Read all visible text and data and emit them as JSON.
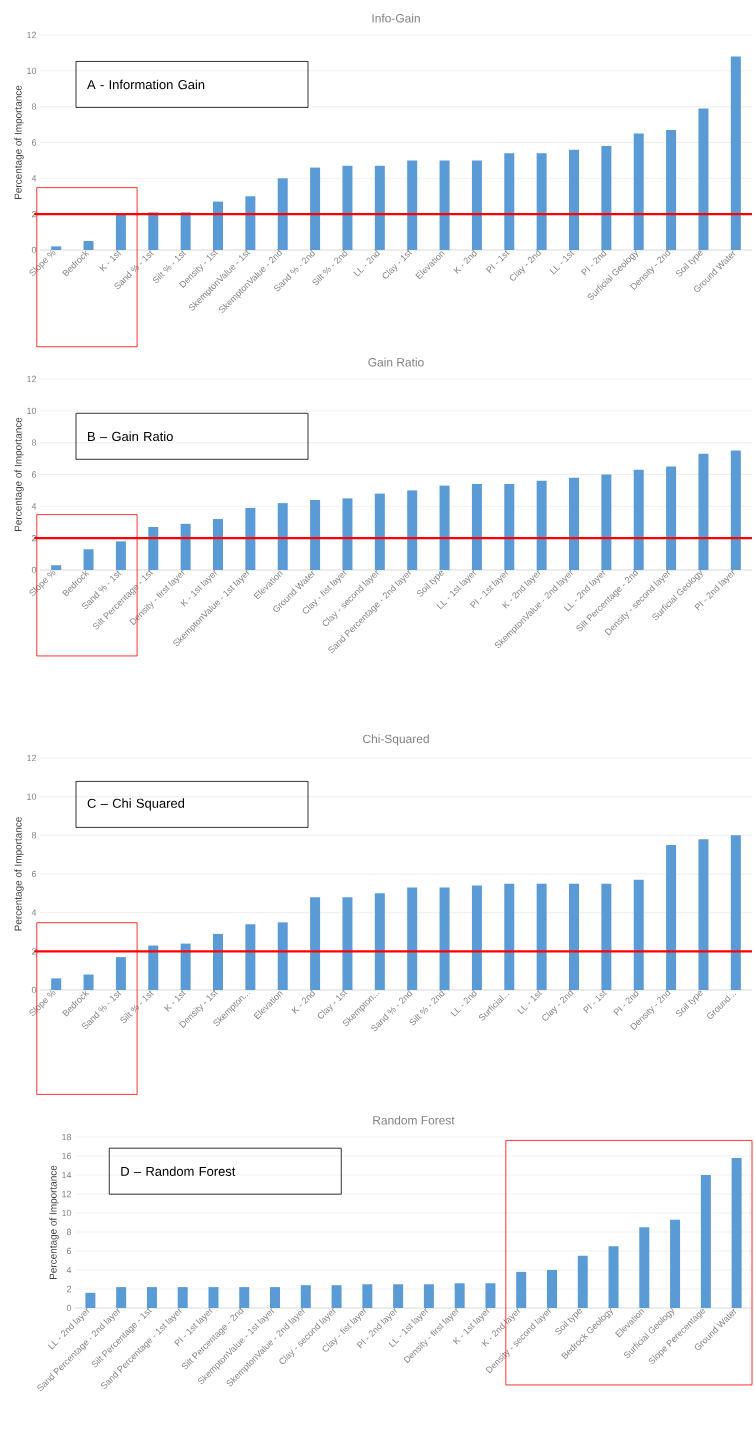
{
  "chart_data": [
    {
      "type": "bar",
      "title": "Info-Gain",
      "ylabel": "Percentage of Importance",
      "color": "#5b9bd5",
      "ylim": [
        0,
        12
      ],
      "yticks": [
        0,
        2,
        4,
        6,
        8,
        10,
        12
      ],
      "grid": "y",
      "categories": [
        "Slope %",
        "Bedrock",
        "K - 1st",
        "Sand % - 1st",
        "Silt % - 1st",
        "Density - 1st",
        "SkemptonValue - 1st",
        "SkemptonValue - 2nd",
        "Sand % - 2nd",
        "Silt % - 2nd",
        "LL - 2nd",
        "Clay - 1st",
        "Elevation",
        "K - 2nd",
        "PI - 1st",
        "Clay - 2nd",
        "LL - 1st",
        "PI - 2nd",
        "Surficial Geology",
        "Density - 2nd",
        "Soil type",
        "Ground Water"
      ],
      "values": [
        0.2,
        0.5,
        2.0,
        2.1,
        2.1,
        2.7,
        3.0,
        4.0,
        4.6,
        4.7,
        4.7,
        5.0,
        5.0,
        5.0,
        5.4,
        5.4,
        5.6,
        5.8,
        6.5,
        6.7,
        7.9,
        10.8
      ],
      "ref_lines": [
        {
          "axis": "y",
          "value": 2,
          "color": "#ff0000"
        }
      ],
      "annotations": [
        "A - Information Gain"
      ]
    },
    {
      "type": "bar",
      "title": "Gain Ratio",
      "ylabel": "Percentage of Importance",
      "color": "#5b9bd5",
      "ylim": [
        0,
        12
      ],
      "yticks": [
        0,
        2,
        4,
        6,
        8,
        10,
        12
      ],
      "grid": "y",
      "categories": [
        "Slope %",
        "Bedrock",
        "Sand % - 1st",
        "Silt Percentage - 1st",
        "Density - first layer",
        "K - 1st layer",
        "SkemptonValue - 1st layer",
        "Elevation",
        "Ground Water",
        "Clay - fist layer",
        "Clay - second  layer",
        "Sand Percentage - 2nd layer",
        "Soil type",
        "LL - 1st layer",
        "PI - 1st layer",
        "K - 2nd layer",
        "SkemptonValue - 2nd layer",
        "LL - 2nd layer",
        "Silt Percentage - 2nd",
        "Density - second layer",
        "Surficial Geology",
        "PI - 2nd layer"
      ],
      "values": [
        0.3,
        1.3,
        1.8,
        2.7,
        2.9,
        3.2,
        3.9,
        4.2,
        4.4,
        4.5,
        4.8,
        5.0,
        5.3,
        5.4,
        5.4,
        5.6,
        5.8,
        6.0,
        6.3,
        6.5,
        7.3,
        7.5
      ],
      "ref_lines": [
        {
          "axis": "y",
          "value": 2,
          "color": "#ff0000"
        }
      ],
      "annotations": [
        "B – Gain Ratio"
      ]
    },
    {
      "type": "bar",
      "title": "Chi-Squared",
      "ylabel": "Percentage of Importance",
      "color": "#5b9bd5",
      "ylim": [
        0,
        12
      ],
      "yticks": [
        0,
        2,
        4,
        6,
        8,
        10,
        12
      ],
      "grid": "y",
      "categories": [
        "Slope %",
        "Bedrock",
        "Sand % - 1st",
        "Silt % - 1st",
        "K - 1st",
        "Density - 1st",
        "Skempton...",
        "Elevation",
        "K - 2nd",
        "Clay - 1st",
        "Skempton...",
        "Sand % - 2nd",
        "Silt % - 2nd",
        "LL - 2nd",
        "Surficial...",
        "LL - 1st",
        "Clay - 2nd",
        "PI - 1st",
        "PI - 2nd",
        "Density - 2nd",
        "Soil type",
        "Ground..."
      ],
      "values": [
        0.6,
        0.8,
        1.7,
        2.3,
        2.4,
        2.9,
        3.4,
        3.5,
        4.8,
        4.8,
        5.0,
        5.3,
        5.3,
        5.4,
        5.5,
        5.5,
        5.5,
        5.5,
        5.7,
        7.5,
        7.8,
        8.0
      ],
      "ref_lines": [
        {
          "axis": "y",
          "value": 2,
          "color": "#ff0000"
        }
      ],
      "annotations": [
        "C – Chi Squared"
      ]
    },
    {
      "type": "bar",
      "title": "Random Forest",
      "ylabel": "Percentage of Importance",
      "color": "#5b9bd5",
      "ylim": [
        0,
        18
      ],
      "yticks": [
        0,
        2,
        4,
        6,
        8,
        10,
        12,
        14,
        16,
        18
      ],
      "grid": "y",
      "categories": [
        "LL - 2nd layer",
        "Sand Percentage - 2nd layer",
        "Silt Percentage - 1st",
        "Sand Percentage - 1st layer",
        "PI - 1st layer",
        "Silt Percentage - 2nd",
        "SkemptonValue - 1st layer",
        "SkemptonValue - 2nd layer",
        "Clay - second  layer",
        "Clay - fist layer",
        "PI - 2nd layer",
        "LL - 1st layer",
        "Density - first layer",
        "K - 1st layer",
        "K - 2nd layer",
        "Density - second layer",
        "Soil type",
        "Bedrock Geology",
        "Elevation",
        "Surficial Geology",
        "Slope Perecentage",
        "Ground Water"
      ],
      "values": [
        1.6,
        2.2,
        2.2,
        2.2,
        2.2,
        2.2,
        2.2,
        2.4,
        2.4,
        2.5,
        2.5,
        2.5,
        2.6,
        2.6,
        3.8,
        4.0,
        5.5,
        6.5,
        8.5,
        9.3,
        14.0,
        15.8
      ],
      "annotations": [
        "D – Random Forest"
      ]
    }
  ]
}
